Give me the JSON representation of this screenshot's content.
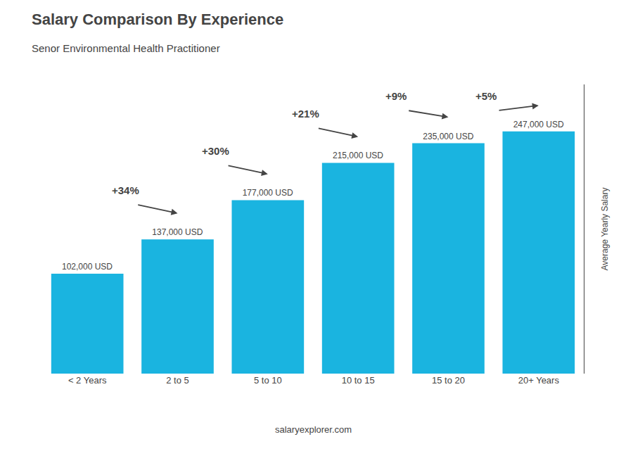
{
  "chart_data": {
    "type": "bar",
    "title": "Salary Comparison By Experience",
    "subtitle": "Senor Environmental Health Practitioner",
    "ylabel": "Average Yearly Salary",
    "categories": [
      "< 2 Years",
      "2 to 5",
      "5 to 10",
      "10 to 15",
      "15 to 20",
      "20+ Years"
    ],
    "values": [
      102000,
      137000,
      177000,
      215000,
      235000,
      247000
    ],
    "value_labels": [
      "102,000 USD",
      "137,000 USD",
      "177,000 USD",
      "215,000 USD",
      "235,000 USD",
      "247,000 USD"
    ],
    "data_labels": true,
    "annotations": [
      "+34%",
      "+30%",
      "+21%",
      "+9%",
      "+5%"
    ],
    "footer": "salaryexplorer.com",
    "color": "#1ab4e0",
    "ylim": [
      0,
      295000
    ],
    "grid": false,
    "tick_labels": "x"
  }
}
